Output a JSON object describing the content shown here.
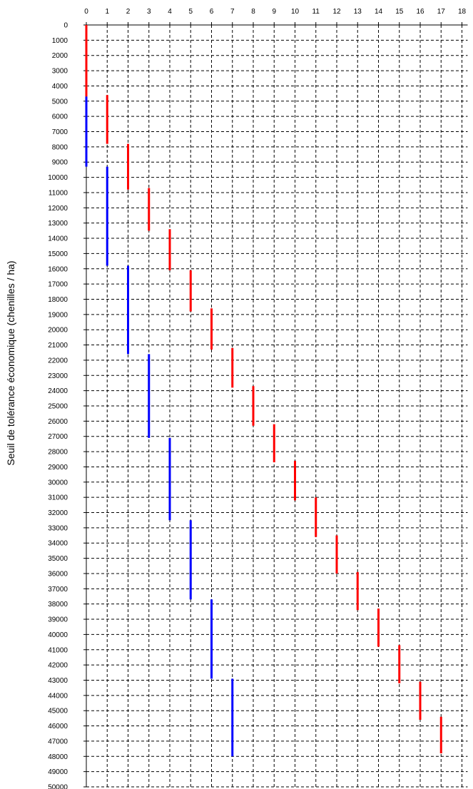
{
  "chart_data": {
    "type": "range-bar",
    "ylabel": "Seuil de tolérance économique (chenilles / ha)",
    "xlabel": "",
    "title": "",
    "x_ticks": [
      0,
      1,
      2,
      3,
      4,
      5,
      6,
      7,
      8,
      9,
      10,
      11,
      12,
      13,
      14,
      15,
      16,
      17,
      18
    ],
    "y_ticks": [
      0,
      1000,
      2000,
      3000,
      4000,
      5000,
      6000,
      7000,
      8000,
      9000,
      10000,
      11000,
      12000,
      13000,
      14000,
      15000,
      16000,
      17000,
      18000,
      19000,
      20000,
      21000,
      22000,
      23000,
      24000,
      25000,
      26000,
      27000,
      28000,
      29000,
      30000,
      31000,
      32000,
      33000,
      34000,
      35000,
      36000,
      37000,
      38000,
      39000,
      40000,
      41000,
      42000,
      43000,
      44000,
      45000,
      46000,
      47000,
      48000,
      49000,
      50000
    ],
    "xlim": [
      0,
      18
    ],
    "ylim": [
      0,
      50000
    ],
    "y_inverted": true,
    "grid": "dashed",
    "legend": "none",
    "series": [
      {
        "color": "#ff0000",
        "ranges": [
          {
            "x": 0,
            "from": 0,
            "to": 4700
          },
          {
            "x": 1,
            "from": 4600,
            "to": 7800
          },
          {
            "x": 2,
            "from": 7800,
            "to": 10800
          },
          {
            "x": 3,
            "from": 10700,
            "to": 13500
          },
          {
            "x": 4,
            "from": 13400,
            "to": 16100
          },
          {
            "x": 5,
            "from": 16100,
            "to": 18800
          },
          {
            "x": 6,
            "from": 18600,
            "to": 21300
          },
          {
            "x": 7,
            "from": 21200,
            "to": 23800
          },
          {
            "x": 8,
            "from": 23700,
            "to": 26300
          },
          {
            "x": 9,
            "from": 26200,
            "to": 28700
          },
          {
            "x": 10,
            "from": 28600,
            "to": 31200
          },
          {
            "x": 11,
            "from": 31000,
            "to": 33600
          },
          {
            "x": 12,
            "from": 33500,
            "to": 36000
          },
          {
            "x": 13,
            "from": 35900,
            "to": 38400
          },
          {
            "x": 14,
            "from": 38300,
            "to": 40800
          },
          {
            "x": 15,
            "from": 40700,
            "to": 43200
          },
          {
            "x": 16,
            "from": 43100,
            "to": 45600
          },
          {
            "x": 17,
            "from": 45400,
            "to": 47800
          }
        ]
      },
      {
        "color": "#0000ff",
        "ranges": [
          {
            "x": 0,
            "from": 4700,
            "to": 9300
          },
          {
            "x": 1,
            "from": 9300,
            "to": 15800
          },
          {
            "x": 2,
            "from": 15800,
            "to": 21600
          },
          {
            "x": 3,
            "from": 21600,
            "to": 27100
          },
          {
            "x": 4,
            "from": 27100,
            "to": 32500
          },
          {
            "x": 5,
            "from": 32500,
            "to": 37700
          },
          {
            "x": 6,
            "from": 37700,
            "to": 42900
          },
          {
            "x": 7,
            "from": 42900,
            "to": 48000
          }
        ]
      }
    ]
  }
}
